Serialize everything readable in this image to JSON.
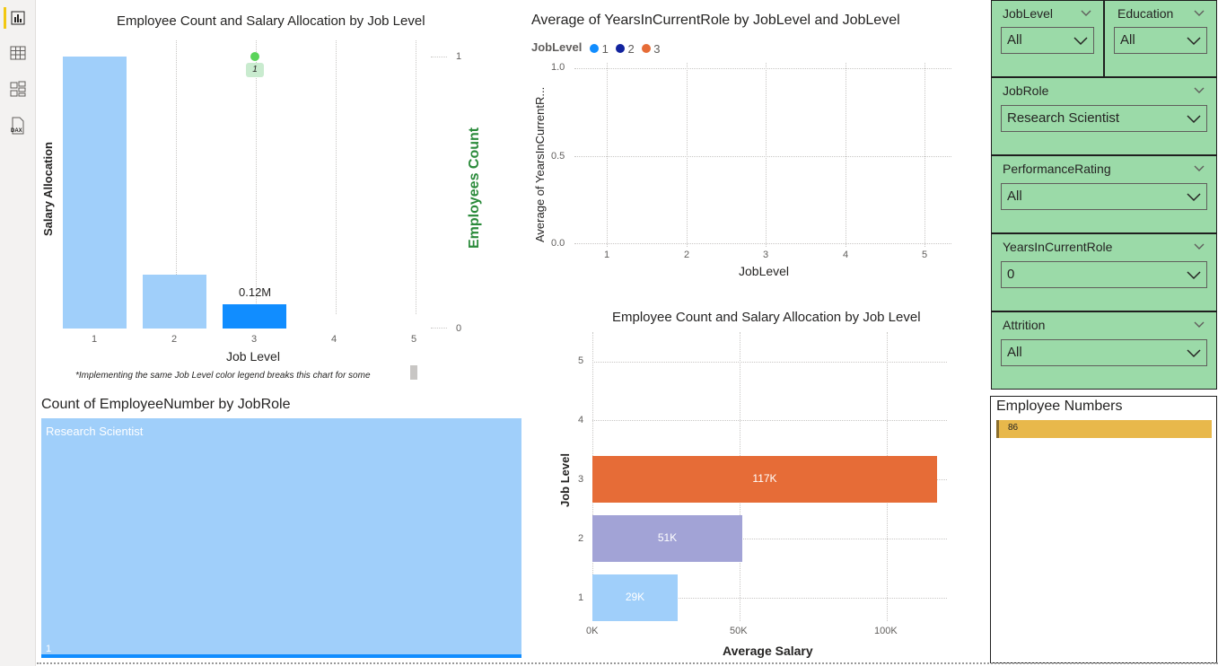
{
  "rail": {
    "icons": [
      "report-view-icon",
      "table-view-icon",
      "model-view-icon",
      "dax-query-icon"
    ]
  },
  "chart1": {
    "title": "Employee Count and Salary Allocation by Job Level",
    "ylabel": "Salary Allocation",
    "y2label": "Employees Count",
    "xlabel": "Job Level",
    "y2ticks": [
      "1",
      "0"
    ],
    "data_label": "0.12M",
    "point_label": "1",
    "footnote": "*Implementing the same Job Level color legend breaks this chart for some"
  },
  "chart2": {
    "title": "Average of YearsInCurrentRole by JobLevel and JobLevel",
    "legend_title": "JobLevel",
    "ylabel": "Average of YearsInCurrentR...",
    "xlabel": "JobLevel"
  },
  "chart3": {
    "title": "Employee Count and Salary Allocation by Job Level",
    "ylabel": "Job Level",
    "xlabel": "Average Salary",
    "xticks": [
      "0K",
      "50K",
      "100K"
    ]
  },
  "treemap": {
    "title": "Count of EmployeeNumber by JobRole",
    "tile_label": "Research Scientist",
    "count_label": "1"
  },
  "slicers": {
    "joblevel": {
      "title": "JobLevel",
      "value": "All"
    },
    "education": {
      "title": "Education",
      "value": "All"
    },
    "jobrole": {
      "title": "JobRole",
      "value": "Research Scientist"
    },
    "performance": {
      "title": "PerformanceRating",
      "value": "All"
    },
    "years": {
      "title": "YearsInCurrentRole",
      "value": "0"
    },
    "attrition": {
      "title": "Attrition",
      "value": "All"
    }
  },
  "employee_numbers": {
    "title": "Employee Numbers",
    "value": "86"
  },
  "colors": {
    "level1": "#118dff",
    "level2": "#12239e",
    "level3": "#e66c37",
    "slicer_bg": "#9bdaa8",
    "bar_light": "#a0cffa"
  },
  "chart_data": [
    {
      "type": "bar",
      "title": "Employee Count and Salary Allocation by Job Level",
      "xlabel": "Job Level",
      "ylabel": "Salary Allocation",
      "categories": [
        "1",
        "2",
        "3",
        "4",
        "5"
      ],
      "series": [
        {
          "name": "Salary Allocation",
          "values": [
            1.03,
            0.2,
            0.12,
            null,
            null
          ]
        },
        {
          "name": "Employees Count",
          "values": [
            null,
            null,
            1,
            null,
            null
          ]
        }
      ],
      "y2label": "Employees Count",
      "y2lim": [
        0,
        1
      ]
    },
    {
      "type": "scatter",
      "title": "Average of YearsInCurrentRole by JobLevel and JobLevel",
      "xlabel": "JobLevel",
      "ylabel": "Average of YearsInCurrentR...",
      "categories": [
        "1",
        "2",
        "3",
        "4",
        "5"
      ],
      "yticks": [
        "1.0",
        "0.5",
        "0.0"
      ],
      "legend": [
        "1",
        "2",
        "3"
      ],
      "series": []
    },
    {
      "type": "bar",
      "orientation": "horizontal",
      "title": "Employee Count and Salary Allocation by Job Level",
      "xlabel": "Average Salary",
      "ylabel": "Job Level",
      "categories": [
        "1",
        "2",
        "3",
        "4",
        "5"
      ],
      "values": [
        29000,
        51000,
        117000,
        null,
        null
      ],
      "labels": [
        "29K",
        "51K",
        "117K",
        "",
        ""
      ],
      "xlim": [
        0,
        120000
      ]
    }
  ]
}
